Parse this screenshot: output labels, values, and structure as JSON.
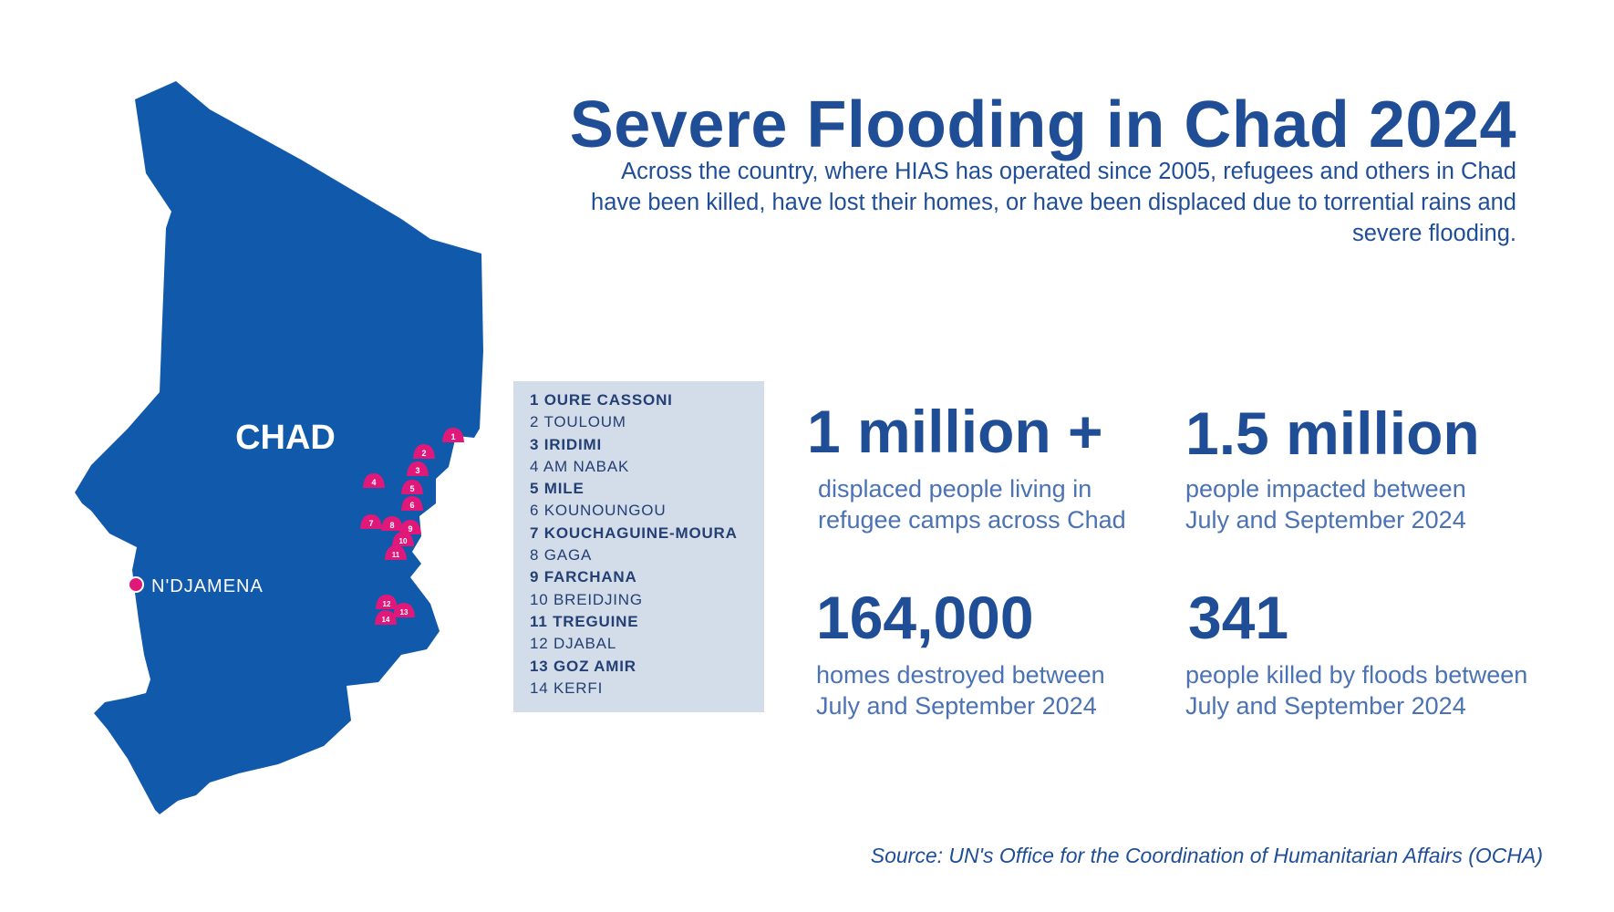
{
  "title": "Severe Flooding in Chad 2024",
  "subtitle": "Across the country, where HIAS has operated since 2005, refugees and others in Chad have been killed, have lost their homes, or have been displaced due to torrential rains and severe flooding.",
  "map": {
    "country_label": "CHAD",
    "capital_label": "N'DJAMENA",
    "marker_numbers": [
      "1",
      "2",
      "3",
      "4",
      "5",
      "6",
      "7",
      "8",
      "9",
      "10",
      "11",
      "12",
      "13",
      "14"
    ]
  },
  "camps": [
    {
      "label": "1 OURE CASSONI",
      "bold": true
    },
    {
      "label": "2 TOULOUM",
      "bold": false
    },
    {
      "label": "3 IRIDIMI",
      "bold": true
    },
    {
      "label": "4 AM NABAK",
      "bold": false
    },
    {
      "label": "5 MILE",
      "bold": true
    },
    {
      "label": "6 KOUNOUNGOU",
      "bold": false
    },
    {
      "label": "7 KOUCHAGUINE-MOURA",
      "bold": true
    },
    {
      "label": "8 GAGA",
      "bold": false
    },
    {
      "label": "9 FARCHANA",
      "bold": true
    },
    {
      "label": "10 BREIDJING",
      "bold": false
    },
    {
      "label": "11 TREGUINE",
      "bold": true
    },
    {
      "label": "12 DJABAL",
      "bold": false
    },
    {
      "label": "13 GOZ AMIR",
      "bold": true
    },
    {
      "label": "14 KERFI",
      "bold": false
    }
  ],
  "stats": {
    "displaced": {
      "value": "1 million +",
      "line1": "displaced people living in",
      "line2": "refugee camps across Chad"
    },
    "impacted": {
      "value": "1.5 million",
      "line1": "people impacted between",
      "line2": "July and September 2024"
    },
    "homes": {
      "value": "164,000",
      "line1": "homes destroyed between",
      "line2": "July and September 2024"
    },
    "killed": {
      "value": "341",
      "line1": "people killed by floods between",
      "line2": "July and September 2024"
    }
  },
  "source": "Source: UN's Office for the Coordination of Humanitarian Affairs (OCHA)",
  "colors": {
    "map_fill": "#1159aa",
    "heading_blue": "#1f4e96",
    "text_blue": "#2d5ea8",
    "label_blue": "#4a72b5",
    "marker_pink": "#e0187a",
    "list_bg": "#d3dce9",
    "list_text": "#233f73",
    "map_label": "#ffffff"
  }
}
